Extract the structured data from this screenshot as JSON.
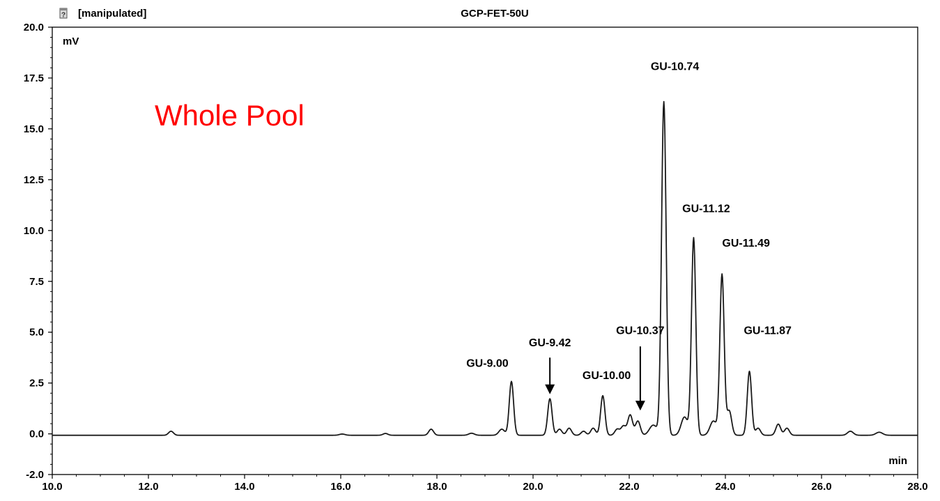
{
  "header": {
    "status_text": "[manipulated]",
    "title": "GCP-FET-50U",
    "status_icon": "question-document-icon"
  },
  "annotation": {
    "text": "Whole Pool",
    "color": "#ff0000"
  },
  "colors": {
    "trace": "#1a1a1a",
    "axis": "#000000",
    "background": "#ffffff"
  },
  "chart_data": {
    "type": "line",
    "title": "GCP-FET-50U",
    "xlabel": "min",
    "ylabel": "mV",
    "xlim": [
      10.0,
      28.0
    ],
    "ylim": [
      -2.0,
      20.0
    ],
    "grid": false,
    "x_ticks": [
      "10.0",
      "12.0",
      "14.0",
      "16.0",
      "18.0",
      "20.0",
      "22.0",
      "24.0",
      "26.0",
      "28.0"
    ],
    "y_ticks": [
      "-2.0",
      "0.0",
      "2.5",
      "5.0",
      "7.5",
      "10.0",
      "12.5",
      "15.0",
      "17.5",
      "20.0"
    ],
    "series": [
      {
        "baseline": -0.07,
        "peaks": [
          {
            "x": 12.47,
            "y": 0.2,
            "w": 0.05
          },
          {
            "x": 16.03,
            "y": 0.06,
            "w": 0.06
          },
          {
            "x": 16.93,
            "y": 0.09,
            "w": 0.05
          },
          {
            "x": 17.88,
            "y": 0.3,
            "w": 0.05
          },
          {
            "x": 18.72,
            "y": 0.1,
            "w": 0.06
          },
          {
            "x": 19.35,
            "y": 0.3,
            "w": 0.06
          },
          {
            "x": 19.55,
            "y": 2.65,
            "w": 0.045
          },
          {
            "x": 20.35,
            "y": 1.8,
            "w": 0.045
          },
          {
            "x": 20.55,
            "y": 0.3,
            "w": 0.05
          },
          {
            "x": 20.75,
            "y": 0.35,
            "w": 0.05
          },
          {
            "x": 21.05,
            "y": 0.2,
            "w": 0.05
          },
          {
            "x": 21.25,
            "y": 0.35,
            "w": 0.05
          },
          {
            "x": 21.45,
            "y": 1.95,
            "w": 0.045
          },
          {
            "x": 21.75,
            "y": 0.3,
            "w": 0.05
          },
          {
            "x": 21.88,
            "y": 0.45,
            "w": 0.05
          },
          {
            "x": 22.02,
            "y": 1.0,
            "w": 0.05
          },
          {
            "x": 22.18,
            "y": 0.7,
            "w": 0.05
          },
          {
            "x": 22.5,
            "y": 0.5,
            "w": 0.08
          },
          {
            "x": 22.72,
            "y": 16.4,
            "w": 0.048
          },
          {
            "x": 23.15,
            "y": 0.9,
            "w": 0.07
          },
          {
            "x": 23.34,
            "y": 9.7,
            "w": 0.045
          },
          {
            "x": 23.75,
            "y": 0.7,
            "w": 0.07
          },
          {
            "x": 23.93,
            "y": 7.9,
            "w": 0.045
          },
          {
            "x": 24.08,
            "y": 1.2,
            "w": 0.05
          },
          {
            "x": 24.5,
            "y": 3.15,
            "w": 0.045
          },
          {
            "x": 24.68,
            "y": 0.35,
            "w": 0.05
          },
          {
            "x": 25.1,
            "y": 0.55,
            "w": 0.05
          },
          {
            "x": 25.28,
            "y": 0.35,
            "w": 0.05
          },
          {
            "x": 26.6,
            "y": 0.2,
            "w": 0.06
          },
          {
            "x": 27.2,
            "y": 0.15,
            "w": 0.07
          }
        ]
      }
    ],
    "annotations": [
      {
        "text": "GU-9.00",
        "x": 19.05,
        "y": 3.3,
        "arrow": false
      },
      {
        "text": "GU-9.42",
        "x": 20.35,
        "y": 4.3,
        "arrow": true,
        "arrow_from": 3.75,
        "arrow_to": 1.95
      },
      {
        "text": "GU-10.00",
        "x": 21.53,
        "y": 2.7,
        "arrow": false
      },
      {
        "text": "GU-10.37",
        "x": 22.23,
        "y": 4.9,
        "arrow": true,
        "arrow_from": 4.3,
        "arrow_to": 1.15
      },
      {
        "text": "GU-10.74",
        "x": 22.95,
        "y": 17.9,
        "arrow": false
      },
      {
        "text": "GU-11.12",
        "x": 23.6,
        "y": 10.9,
        "arrow": false
      },
      {
        "text": "GU-11.49",
        "x": 24.43,
        "y": 9.2,
        "arrow": false
      },
      {
        "text": "GU-11.87",
        "x": 24.88,
        "y": 4.9,
        "arrow": false
      }
    ]
  }
}
